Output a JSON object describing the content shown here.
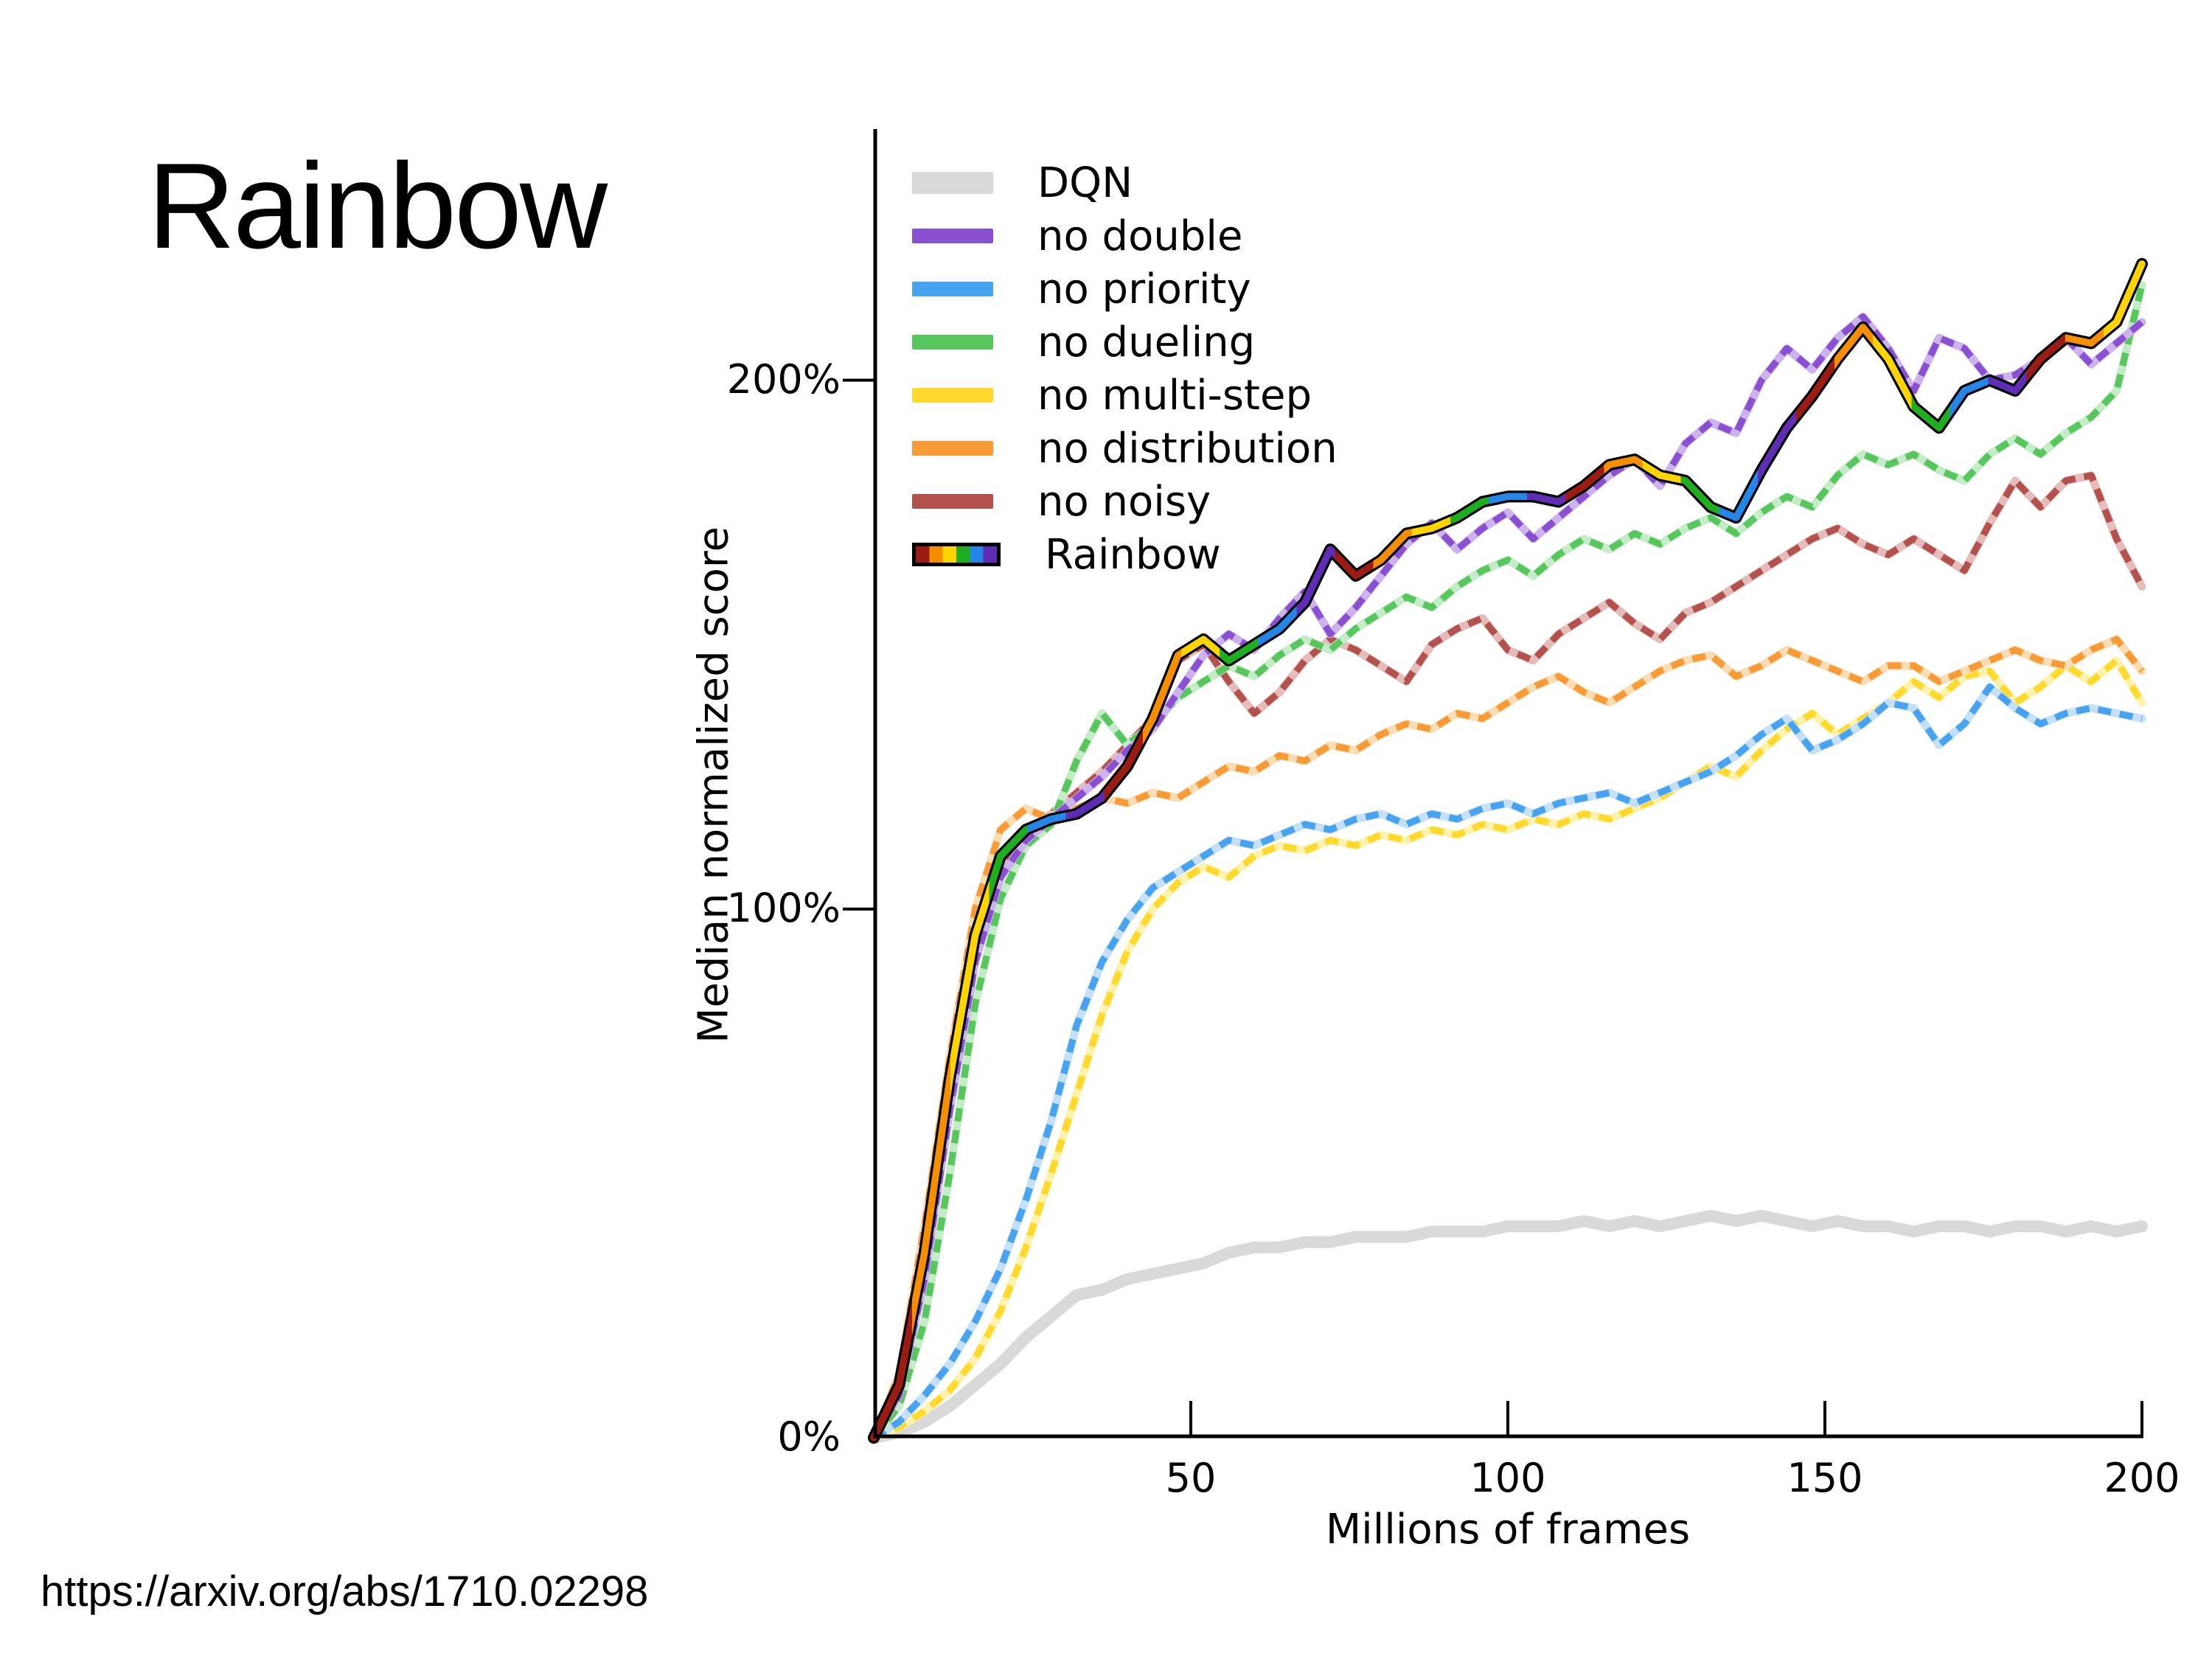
{
  "slide": {
    "title": "Rainbow",
    "source_url": "https://arxiv.org/abs/1710.02298"
  },
  "chart_data": {
    "type": "line",
    "title": "",
    "xlabel": "Millions of frames",
    "ylabel": "Median normalized score",
    "xlim": [
      0,
      200
    ],
    "ylim_percent": [
      0,
      247.5
    ],
    "x_ticks": [
      50,
      100,
      150,
      200
    ],
    "y_ticks": [
      {
        "label": "0%",
        "value": 0,
        "show_mark": false
      },
      {
        "label": "100%",
        "value": 100,
        "show_mark": true
      },
      {
        "label": "200%",
        "value": 200,
        "show_mark": true
      }
    ],
    "grid": false,
    "legend_position": "upper-left-inside",
    "x_step": 4,
    "axis_color": "#000000",
    "draw_order": [
      0,
      4,
      2,
      5,
      6,
      3,
      1,
      7
    ],
    "series": [
      {
        "name": "DQN",
        "style": "solid-thick",
        "color": "#d9d9d9",
        "values": [
          0,
          1,
          3,
          6,
          10,
          14,
          19,
          23,
          27,
          28,
          30,
          31,
          32,
          33,
          35,
          36,
          36,
          37,
          37,
          38,
          38,
          38,
          39,
          39,
          39,
          40,
          40,
          40,
          41,
          40,
          41,
          40,
          41,
          42,
          41,
          42,
          41,
          40,
          41,
          40,
          40,
          39,
          40,
          40,
          39,
          40,
          40,
          39,
          40,
          39,
          40
        ]
      },
      {
        "name": "no double",
        "style": "dashed",
        "color": "#8950d2",
        "light": "#cdb3ee",
        "values": [
          0,
          8,
          30,
          62,
          90,
          106,
          113,
          117,
          121,
          125,
          130,
          134,
          141,
          148,
          152,
          149,
          155,
          160,
          152,
          157,
          163,
          169,
          173,
          168,
          172,
          175,
          170,
          174,
          178,
          182,
          185,
          180,
          188,
          192,
          190,
          200,
          206,
          202,
          208,
          212,
          206,
          198,
          208,
          206,
          200,
          201,
          204,
          208,
          203,
          207,
          211
        ]
      },
      {
        "name": "no priority",
        "style": "dashed",
        "color": "#47a2f0",
        "light": "#c5e0fa",
        "values": [
          0,
          3,
          8,
          14,
          22,
          32,
          45,
          60,
          78,
          90,
          98,
          104,
          107,
          110,
          113,
          112,
          114,
          116,
          115,
          117,
          118,
          116,
          118,
          117,
          119,
          120,
          118,
          120,
          121,
          122,
          120,
          122,
          124,
          126,
          129,
          133,
          136,
          130,
          132,
          135,
          139,
          138,
          131,
          135,
          142,
          138,
          135,
          137,
          138,
          137,
          136
        ]
      },
      {
        "name": "no dueling",
        "style": "dashed",
        "color": "#57c75d",
        "light": "#c4edc7",
        "values": [
          0,
          6,
          22,
          50,
          82,
          102,
          112,
          116,
          128,
          137,
          131,
          135,
          140,
          143,
          146,
          144,
          148,
          151,
          149,
          153,
          156,
          159,
          157,
          161,
          164,
          166,
          163,
          167,
          170,
          168,
          171,
          169,
          172,
          174,
          171,
          175,
          178,
          176,
          182,
          186,
          184,
          186,
          183,
          181,
          186,
          189,
          186,
          190,
          193,
          198,
          218
        ]
      },
      {
        "name": "no multi-step",
        "style": "dashed",
        "color": "#ffd92e",
        "light": "#fff2ad",
        "values": [
          0,
          2,
          5,
          9,
          15,
          24,
          36,
          50,
          65,
          80,
          92,
          100,
          105,
          108,
          106,
          110,
          112,
          111,
          113,
          112,
          114,
          113,
          115,
          114,
          116,
          115,
          117,
          116,
          118,
          117,
          119,
          121,
          124,
          127,
          125,
          130,
          134,
          137,
          133,
          136,
          139,
          143,
          140,
          144,
          145,
          139,
          142,
          146,
          143,
          147,
          139
        ]
      },
      {
        "name": "no distribution",
        "style": "dashed",
        "color": "#f89a35",
        "light": "#fcdcb2",
        "values": [
          0,
          12,
          40,
          72,
          100,
          115,
          119,
          117,
          119,
          121,
          120,
          122,
          121,
          124,
          127,
          126,
          129,
          128,
          131,
          130,
          133,
          135,
          134,
          137,
          136,
          139,
          142,
          144,
          141,
          139,
          142,
          145,
          147,
          148,
          144,
          146,
          149,
          147,
          145,
          143,
          146,
          146,
          143,
          145,
          147,
          149,
          147,
          146,
          149,
          151,
          145
        ]
      },
      {
        "name": "no noisy",
        "style": "dashed",
        "color": "#b3524d",
        "light": "#e6bcba",
        "values": [
          0,
          9,
          32,
          65,
          93,
          108,
          114,
          118,
          122,
          126,
          131,
          136,
          147,
          150,
          143,
          137,
          141,
          147,
          151,
          149,
          146,
          143,
          150,
          153,
          155,
          149,
          147,
          152,
          155,
          158,
          154,
          151,
          156,
          158,
          161,
          164,
          167,
          170,
          172,
          169,
          167,
          170,
          167,
          164,
          173,
          181,
          176,
          181,
          182,
          170,
          161
        ]
      },
      {
        "name": "Rainbow",
        "style": "rainbow-solid",
        "outline": "#000000",
        "rainbow_colors": [
          "#9c1c13",
          "#f58f00",
          "#ffd400",
          "#1fae1f",
          "#2586e8",
          "#5f2db3"
        ],
        "values": [
          0,
          10,
          35,
          68,
          95,
          110,
          115,
          117,
          118,
          121,
          127,
          136,
          148,
          151,
          147,
          150,
          153,
          158,
          168,
          163,
          166,
          171,
          172,
          174,
          177,
          178,
          178,
          177,
          180,
          184,
          185,
          182,
          181,
          176,
          174,
          183,
          191,
          197,
          204,
          210,
          204,
          195,
          191,
          198,
          200,
          198,
          204,
          208,
          207,
          211,
          222
        ]
      }
    ]
  }
}
